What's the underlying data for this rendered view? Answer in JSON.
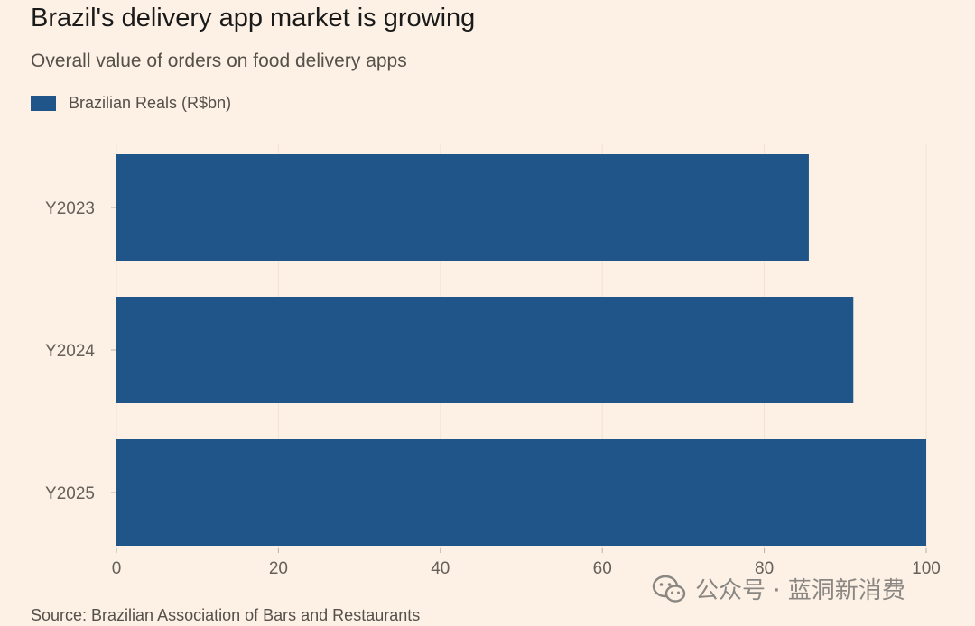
{
  "header": {
    "title": "Brazil's delivery app market is growing",
    "subtitle": "Overall value of orders on food delivery apps"
  },
  "legend": {
    "label": "Brazilian Reals (R$bn)",
    "color": "#1f5589"
  },
  "footer": {
    "source": "Source: Brazilian Association of Bars and Restaurants"
  },
  "watermark": {
    "text": "公众号 · 蓝洞新消费",
    "icon": "wechat-icon"
  },
  "colors": {
    "bar": "#1f5589",
    "background": "#fdf1e6",
    "axis_text": "#66605a"
  },
  "chart_data": {
    "type": "bar",
    "orientation": "horizontal",
    "categories": [
      "Y2023",
      "Y2024",
      "Y2025"
    ],
    "series": [
      {
        "name": "Brazilian Reals (R$bn)",
        "values": [
          85.5,
          91,
          100
        ]
      }
    ],
    "xlim": [
      0,
      100
    ],
    "xticks": [
      0,
      20,
      40,
      60,
      80,
      100
    ],
    "grid": true,
    "legend_position": "top-left"
  }
}
